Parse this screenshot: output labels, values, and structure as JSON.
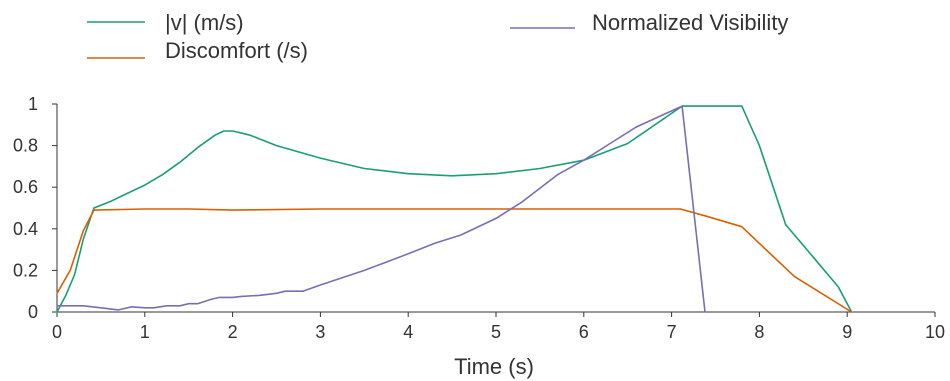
{
  "chart_data": {
    "type": "line",
    "title": "",
    "xlabel": "Time (s)",
    "ylabel": "",
    "xlim": [
      0,
      10
    ],
    "ylim": [
      0,
      1
    ],
    "x_ticks": [
      "0",
      "1",
      "2",
      "3",
      "4",
      "5",
      "6",
      "7",
      "8",
      "9",
      "10"
    ],
    "y_ticks": [
      "0",
      "0.2",
      "0.4",
      "0.6",
      "0.8",
      "1"
    ],
    "grid": false,
    "legend_position": "top",
    "series": [
      {
        "name": "|v| (m/s)",
        "color": "#1a9e77",
        "points": [
          [
            0.0,
            0.0
          ],
          [
            0.1,
            0.08
          ],
          [
            0.2,
            0.18
          ],
          [
            0.3,
            0.35
          ],
          [
            0.42,
            0.5
          ],
          [
            0.6,
            0.53
          ],
          [
            0.8,
            0.57
          ],
          [
            1.0,
            0.61
          ],
          [
            1.2,
            0.66
          ],
          [
            1.4,
            0.72
          ],
          [
            1.6,
            0.79
          ],
          [
            1.8,
            0.85
          ],
          [
            1.9,
            0.87
          ],
          [
            2.0,
            0.87
          ],
          [
            2.2,
            0.85
          ],
          [
            2.5,
            0.8
          ],
          [
            3.0,
            0.74
          ],
          [
            3.5,
            0.69
          ],
          [
            4.0,
            0.665
          ],
          [
            4.5,
            0.655
          ],
          [
            5.0,
            0.665
          ],
          [
            5.5,
            0.69
          ],
          [
            6.0,
            0.73
          ],
          [
            6.5,
            0.81
          ],
          [
            7.12,
            0.99
          ],
          [
            7.8,
            0.99
          ],
          [
            8.0,
            0.8
          ],
          [
            8.3,
            0.42
          ],
          [
            8.6,
            0.27
          ],
          [
            8.9,
            0.12
          ],
          [
            9.05,
            0.0
          ]
        ]
      },
      {
        "name": "Discomfort (/s)",
        "color": "#d95f02",
        "points": [
          [
            0.0,
            0.09
          ],
          [
            0.15,
            0.2
          ],
          [
            0.3,
            0.39
          ],
          [
            0.42,
            0.49
          ],
          [
            1.0,
            0.495
          ],
          [
            1.5,
            0.495
          ],
          [
            2.0,
            0.49
          ],
          [
            3.0,
            0.495
          ],
          [
            4.0,
            0.495
          ],
          [
            5.0,
            0.495
          ],
          [
            6.0,
            0.495
          ],
          [
            7.1,
            0.495
          ],
          [
            7.4,
            0.46
          ],
          [
            7.8,
            0.41
          ],
          [
            8.0,
            0.33
          ],
          [
            8.4,
            0.17
          ],
          [
            9.05,
            0.0
          ]
        ]
      },
      {
        "name": "Normalized Visibility",
        "color": "#7570b3",
        "points": [
          [
            0.0,
            0.03
          ],
          [
            0.3,
            0.03
          ],
          [
            0.5,
            0.02
          ],
          [
            0.7,
            0.01
          ],
          [
            0.85,
            0.025
          ],
          [
            1.0,
            0.02
          ],
          [
            1.1,
            0.02
          ],
          [
            1.25,
            0.03
          ],
          [
            1.4,
            0.03
          ],
          [
            1.5,
            0.04
          ],
          [
            1.6,
            0.04
          ],
          [
            1.75,
            0.06
          ],
          [
            1.85,
            0.07
          ],
          [
            2.0,
            0.07
          ],
          [
            2.1,
            0.075
          ],
          [
            2.3,
            0.08
          ],
          [
            2.5,
            0.09
          ],
          [
            2.6,
            0.1
          ],
          [
            2.8,
            0.1
          ],
          [
            3.0,
            0.13
          ],
          [
            3.5,
            0.2
          ],
          [
            4.0,
            0.28
          ],
          [
            4.3,
            0.33
          ],
          [
            4.6,
            0.37
          ],
          [
            5.0,
            0.45
          ],
          [
            5.3,
            0.53
          ],
          [
            5.7,
            0.66
          ],
          [
            6.0,
            0.73
          ],
          [
            6.3,
            0.81
          ],
          [
            6.6,
            0.89
          ],
          [
            7.12,
            0.99
          ],
          [
            7.38,
            0.0
          ]
        ]
      }
    ]
  }
}
